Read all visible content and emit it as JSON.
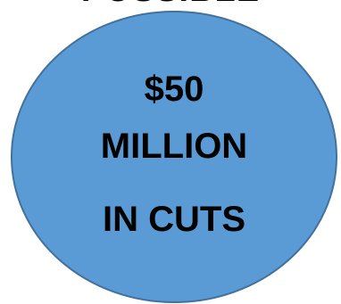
{
  "header": {
    "cut_off_text": "POSSIBLE"
  },
  "badge": {
    "fill_color": "#5b9bd5",
    "stroke_color": "#41719c",
    "line1": "$50",
    "line2": "MILLION",
    "line3": "IN CUTS"
  }
}
